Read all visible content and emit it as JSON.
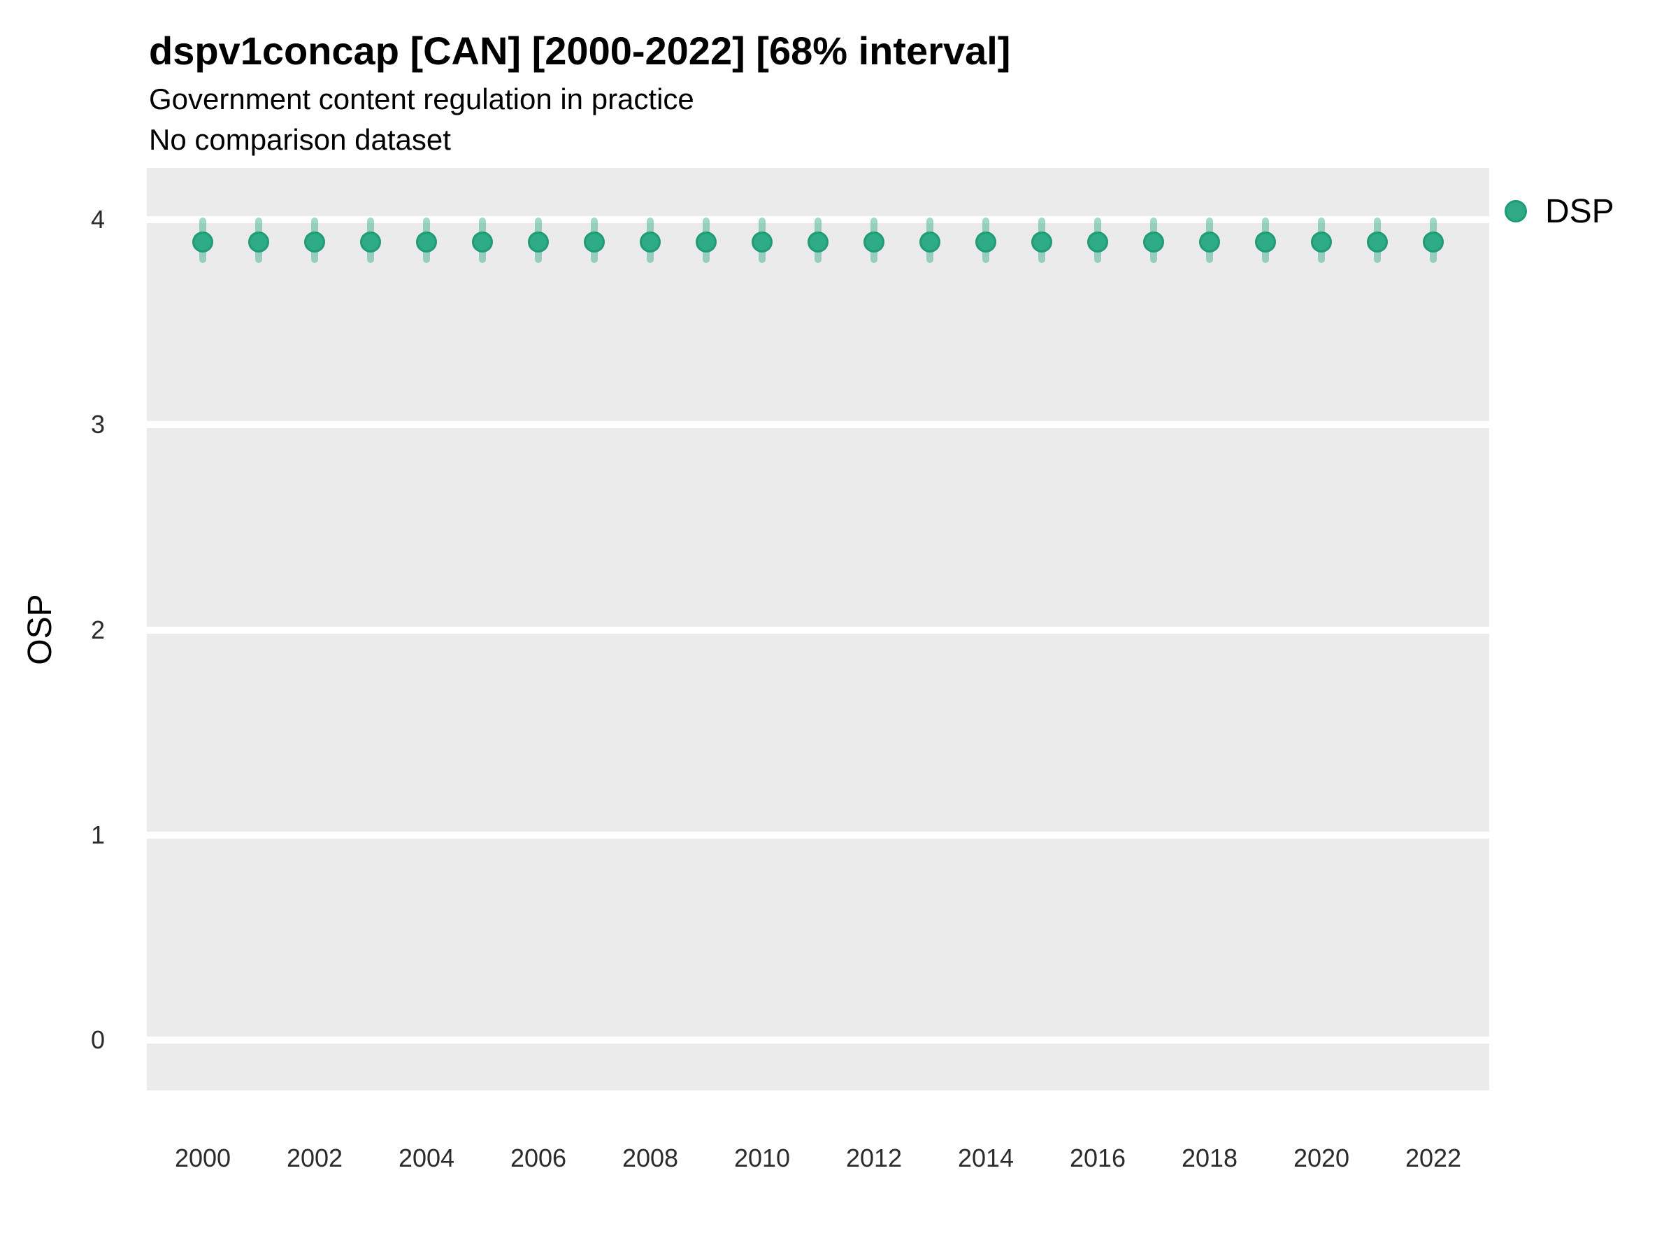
{
  "title": "dspv1concap [CAN] [2000-2022] [68% interval]",
  "subtitle": "Government content regulation in practice",
  "subtitle2": "No comparison dataset",
  "legend": {
    "label": "DSP"
  },
  "colors": {
    "point_fill": "#2EAB86",
    "point_stroke": "#1F9C76",
    "interval": "rgba(46,171,134,0.45)",
    "panel_background": "#EBEBEB",
    "gridline": "#FFFFFF"
  },
  "chart_data": {
    "type": "scatter",
    "title": "dspv1concap [CAN] [2000-2022] [68% interval]",
    "subtitle": "Government content regulation in practice",
    "note": "No comparison dataset",
    "interval_label": "68% interval",
    "xlabel": "",
    "ylabel": "OSP",
    "x": [
      2000,
      2001,
      2002,
      2003,
      2004,
      2005,
      2006,
      2007,
      2008,
      2009,
      2010,
      2011,
      2012,
      2013,
      2014,
      2015,
      2016,
      2017,
      2018,
      2019,
      2020,
      2021,
      2022
    ],
    "series": [
      {
        "name": "DSP",
        "values": [
          3.89,
          3.89,
          3.89,
          3.89,
          3.89,
          3.89,
          3.89,
          3.89,
          3.89,
          3.89,
          3.89,
          3.89,
          3.89,
          3.89,
          3.89,
          3.89,
          3.89,
          3.89,
          3.89,
          3.89,
          3.89,
          3.89,
          3.89
        ],
        "interval_low": [
          3.79,
          3.79,
          3.79,
          3.79,
          3.79,
          3.79,
          3.79,
          3.79,
          3.79,
          3.79,
          3.79,
          3.79,
          3.79,
          3.79,
          3.79,
          3.79,
          3.79,
          3.79,
          3.79,
          3.79,
          3.79,
          3.79,
          3.79
        ],
        "interval_high": [
          4.01,
          4.01,
          4.01,
          4.01,
          4.01,
          4.01,
          4.01,
          4.01,
          4.01,
          4.01,
          4.01,
          4.01,
          4.01,
          4.01,
          4.01,
          4.01,
          4.01,
          4.01,
          4.01,
          4.01,
          4.01,
          4.01,
          4.01
        ]
      }
    ],
    "x_ticks": [
      2000,
      2002,
      2004,
      2006,
      2008,
      2010,
      2012,
      2014,
      2016,
      2018,
      2020,
      2022
    ],
    "y_ticks": [
      0,
      1,
      2,
      3,
      4
    ],
    "ylim": [
      -0.25,
      4.25
    ],
    "grid": "horizontal-major",
    "legend_position": "right-top"
  }
}
